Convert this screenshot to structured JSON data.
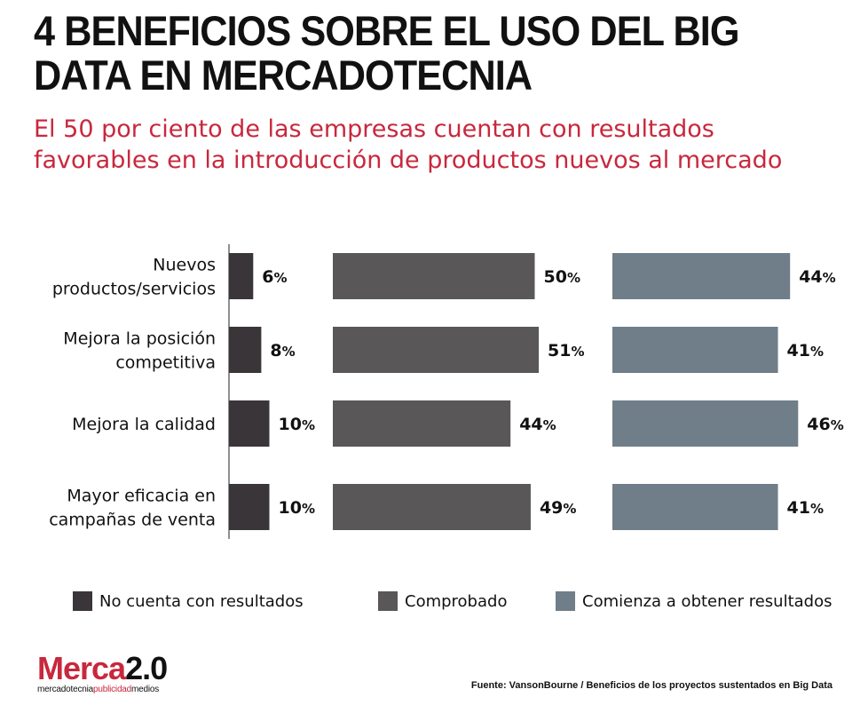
{
  "title": "4 BENEFICIOS SOBRE EL USO DEL BIG DATA EN MERCADOTECNIA",
  "subtitle": "El 50 por ciento de las empresas cuentan con resultados favorables en la introducción de productos nuevos al mercado",
  "chart_data": {
    "type": "bar",
    "orientation": "horizontal",
    "categories": [
      [
        "Nuevos",
        "productos/servicios"
      ],
      [
        "Mejora la posición",
        "competitiva"
      ],
      [
        "Mejora la calidad"
      ],
      [
        "Mayor eficacia en",
        "campañas de venta"
      ]
    ],
    "series": [
      {
        "name": "No cuenta con resultados",
        "color": "#3a3538",
        "values": [
          6,
          8,
          10,
          10
        ]
      },
      {
        "name": "Comprobado",
        "color": "#595757",
        "values": [
          50,
          51,
          44,
          49
        ]
      },
      {
        "name": "Comienza a obtener resultados",
        "color": "#6f7e89",
        "values": [
          44,
          41,
          46,
          41
        ]
      }
    ],
    "value_suffix": "%",
    "layout": "small-multiples-side-by-side",
    "legend_position": "bottom"
  },
  "legend": [
    {
      "label": "No cuenta con resultados",
      "color": "#3a3538"
    },
    {
      "label": "Comprobado",
      "color": "#595757"
    },
    {
      "label": "Comienza a obtener resultados",
      "color": "#6f7e89"
    }
  ],
  "logo": {
    "brand_main": "Merca",
    "brand_num": "2.0",
    "tag_left": "mercadotecnia",
    "tag_mid": "publicidad",
    "tag_right": "medios"
  },
  "source": "Fuente:  VansonBourne / Beneficios de los proyectos sustentados en Big Data"
}
